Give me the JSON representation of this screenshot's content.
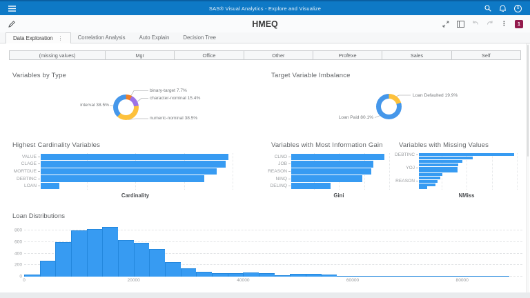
{
  "appbar": {
    "title": "SAS® Visual Analytics - Explore and Visualize",
    "avatar_initial": "S"
  },
  "toolbar": {
    "report_title": "HMEQ",
    "badge_count": "1"
  },
  "tabs": [
    {
      "label": "Data Exploration"
    },
    {
      "label": "Correlation Analysis"
    },
    {
      "label": "Auto Explain"
    },
    {
      "label": "Decision Tree"
    }
  ],
  "button_bar": [
    "(missing values)",
    "Mgr",
    "Office",
    "Other",
    "ProfExe",
    "Sales",
    "Self"
  ],
  "colors": {
    "appbar_blue": "#0e79c6",
    "bar_blue": "#379bf2",
    "donut_blue": "#4597ea",
    "donut_orange": "#ef8027",
    "donut_purple": "#9c73e8",
    "donut_yellow": "#fdc13c",
    "badge_maroon": "#931b4d"
  },
  "chart_data": [
    {
      "id": "variables_by_type",
      "type": "pie",
      "donut": true,
      "title": "Variables by Type",
      "slices": [
        {
          "label": "binary-target",
          "value": 7.7,
          "color": "#ef8027"
        },
        {
          "label": "character-nominal",
          "value": 15.4,
          "color": "#9c73e8"
        },
        {
          "label": "numeric-nominal",
          "value": 38.5,
          "color": "#fdc13c"
        },
        {
          "label": "interval",
          "value": 38.5,
          "color": "#4597ea"
        }
      ]
    },
    {
      "id": "target_variable_imbalance",
      "type": "pie",
      "donut": true,
      "title": "Target Variable Imbalance",
      "slices": [
        {
          "label": "Loan Defaulted",
          "value": 19.9,
          "color": "#fdc13c"
        },
        {
          "label": "Loan Paid",
          "value": 80.1,
          "color": "#4597ea"
        }
      ]
    },
    {
      "id": "highest_cardinality_variables",
      "type": "bar",
      "orientation": "horizontal",
      "title": "Highest Cardinality Variables",
      "xlabel": "Cardinality",
      "categories": [
        "VALUE",
        "CLAGE",
        "MORTDUE",
        "DEBTINC",
        "LOAN"
      ],
      "values": [
        5380,
        5310,
        5050,
        4690,
        540
      ],
      "xlim": [
        0,
        5500
      ]
    },
    {
      "id": "variables_with_most_information_gain",
      "type": "bar",
      "orientation": "horizontal",
      "title": "Variables with Most Information Gain",
      "xlabel": "Gini",
      "categories": [
        "CLNO",
        "JOB",
        "REASON",
        "NINQ",
        "DELINQ"
      ],
      "values": [
        1.0,
        0.88,
        0.86,
        0.76,
        0.42
      ],
      "xlim": [
        0,
        1.05
      ]
    },
    {
      "id": "variables_with_missing_values",
      "type": "bar",
      "orientation": "horizontal",
      "title": "Variables with Missing Values",
      "xlabel": "NMiss",
      "categories": [
        "DEBTINC",
        "",
        "",
        "",
        "YOJ",
        "",
        "",
        "",
        "REASON",
        "",
        ""
      ],
      "values": [
        1267,
        710,
        580,
        520,
        515,
        510,
        310,
        280,
        250,
        220,
        112
      ],
      "xlim": [
        0,
        1300
      ]
    },
    {
      "id": "loan_distributions",
      "type": "bar",
      "subtype": "histogram",
      "title": "Loan Distributions",
      "bin_start": 0,
      "bin_width": 2857,
      "counts": [
        35,
        275,
        600,
        800,
        830,
        870,
        635,
        590,
        480,
        255,
        150,
        80,
        60,
        60,
        75,
        55,
        25,
        50,
        45,
        35,
        5,
        4,
        3,
        3,
        2,
        2,
        2,
        1,
        1,
        1,
        1
      ],
      "xlim": [
        0,
        91000
      ],
      "ylim": [
        0,
        950
      ],
      "x_ticks": [
        0,
        20000,
        40000,
        60000,
        80000
      ],
      "y_ticks": [
        0,
        200,
        400,
        600,
        800
      ]
    }
  ]
}
